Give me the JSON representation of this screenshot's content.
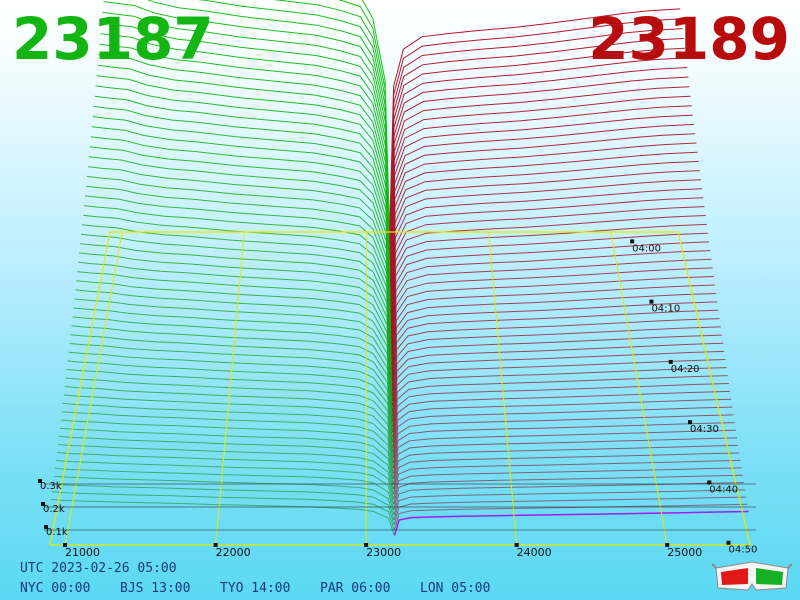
{
  "header": {
    "bid_price": "23187",
    "ask_price": "23189",
    "bid_color": "#12b512",
    "ask_color": "#b80c0c"
  },
  "chart_data": {
    "type": "area",
    "title": "",
    "x_ticks": [
      "21000",
      "22000",
      "23000",
      "24000",
      "25000"
    ],
    "depth_ticks": [
      "0.1k",
      "0.2k",
      "0.3k"
    ],
    "time_ticks": [
      "04:00",
      "04:10",
      "04:20",
      "04:30",
      "04:40",
      "04:50"
    ],
    "xlim": [
      20900,
      25550
    ],
    "grid": true,
    "series": [
      {
        "name": "bid",
        "color": "#14c214",
        "x": [
          20900,
          21000,
          21150,
          21300,
          21500,
          21700,
          22000,
          22200,
          22400,
          22600,
          22800,
          22950,
          23050,
          23150,
          23187
        ],
        "depth_top": [
          475,
          472,
          468,
          455,
          445,
          440,
          430,
          425,
          420,
          415,
          405,
          395,
          360,
          260,
          20
        ],
        "depth_bottom": [
          115,
          112,
          110,
          108,
          106,
          104,
          100,
          98,
          96,
          94,
          90,
          86,
          80,
          60,
          10
        ]
      },
      {
        "name": "ask",
        "color": "#b5142a",
        "x": [
          23189,
          23220,
          23300,
          23450,
          23650,
          23900,
          24200,
          24500,
          24800,
          25100,
          25300,
          25550
        ],
        "depth_top": [
          20,
          250,
          310,
          330,
          335,
          340,
          345,
          352,
          360,
          368,
          372,
          375
        ],
        "depth_bottom": [
          10,
          55,
          62,
          64,
          66,
          68,
          70,
          72,
          74,
          76,
          78,
          80
        ]
      }
    ],
    "latest_slice_color": "#a020f0",
    "frame_color": "#e8e800"
  },
  "footer": {
    "utc": "UTC 2023-02-26 05:00",
    "cities": [
      "NYC 00:00",
      "BJS 13:00",
      "TYO 14:00",
      "PAR 06:00",
      "LON 05:00"
    ]
  },
  "icons": {
    "glasses": "3d-glasses-icon"
  }
}
